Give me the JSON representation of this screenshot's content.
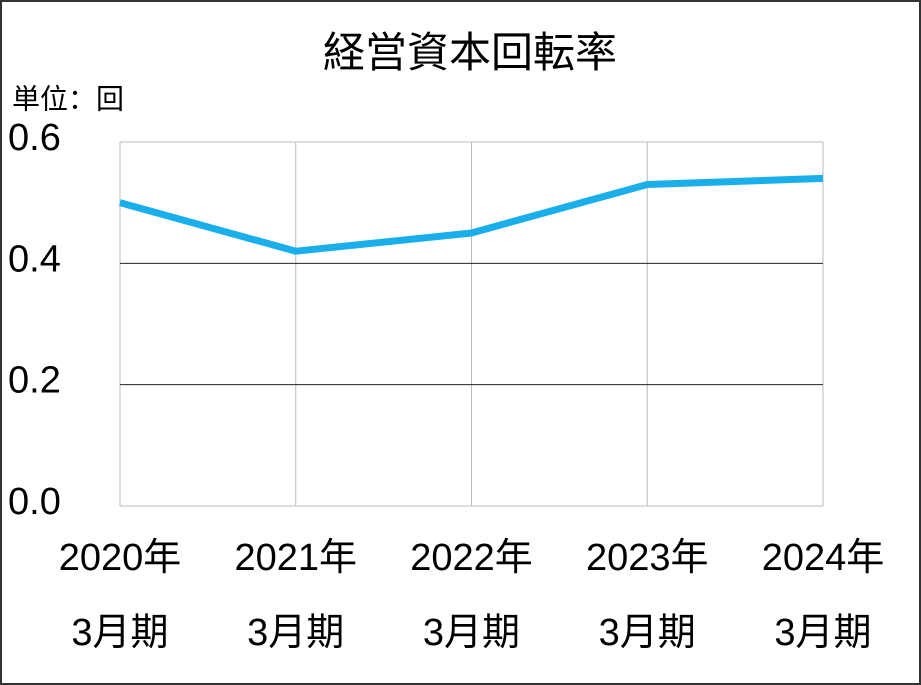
{
  "chart_data": {
    "type": "line",
    "title": "経営資本回転率",
    "y_unit_label": "単位：回",
    "categories": [
      [
        "2020年",
        "3月期"
      ],
      [
        "2021年",
        "3月期"
      ],
      [
        "2022年",
        "3月期"
      ],
      [
        "2023年",
        "3月期"
      ],
      [
        "2024年",
        "3月期"
      ]
    ],
    "values": [
      0.5,
      0.42,
      0.45,
      0.53,
      0.54
    ],
    "color": "#1aaeea",
    "ylim": [
      0,
      0.6
    ],
    "yticks": [
      {
        "value": 0,
        "label": "0.0"
      },
      0.2,
      0.4,
      0.6
    ],
    "grid": true
  }
}
